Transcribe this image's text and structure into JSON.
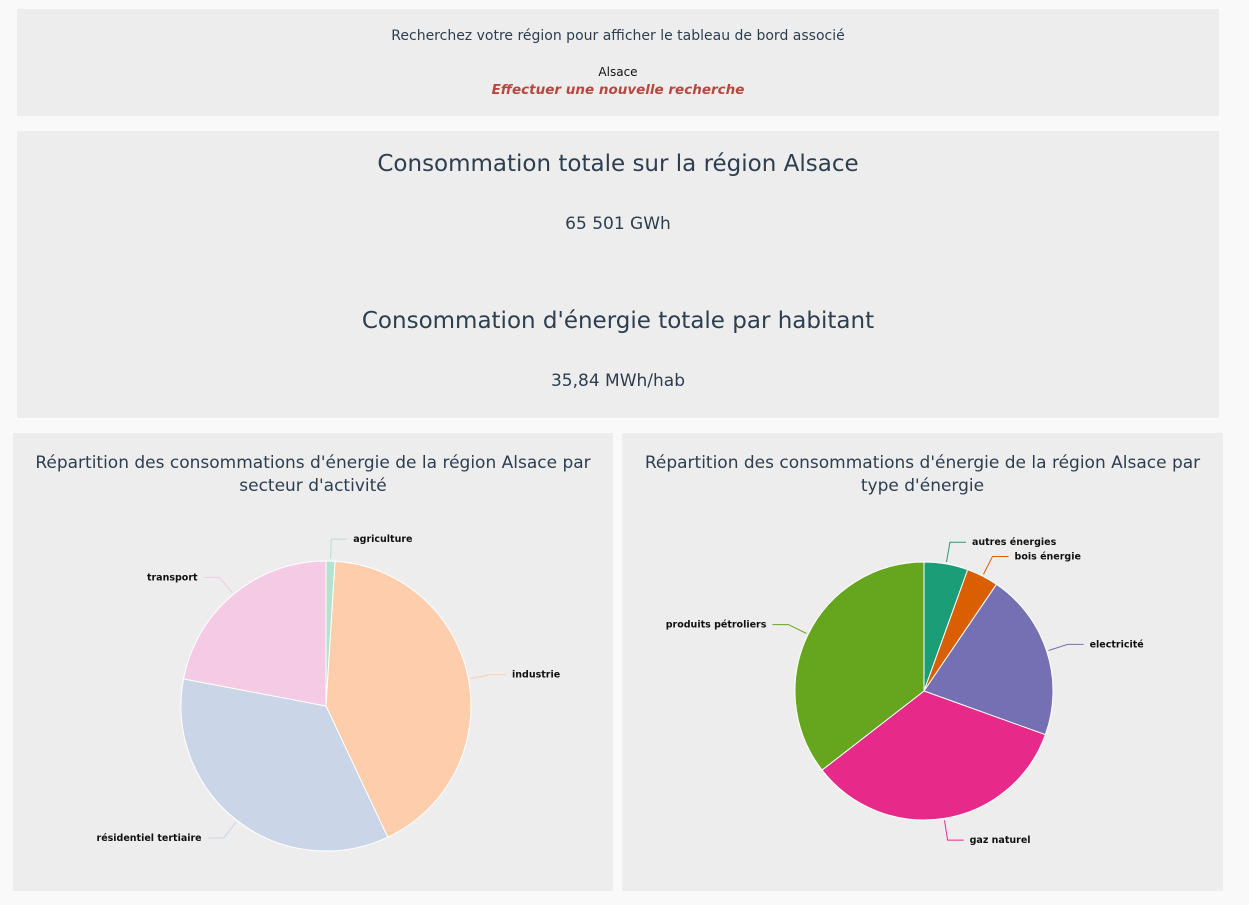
{
  "search": {
    "prompt": "Recherchez votre région pour afficher le tableau de bord associé",
    "region": "Alsace",
    "new_search_label": "Effectuer une nouvelle recherche"
  },
  "totals": {
    "consumption_title": "Consommation totale sur la région Alsace",
    "consumption_value": "65 501 GWh",
    "per_capita_title": "Consommation d'énergie totale par habitant",
    "per_capita_value": "35,84 MWh/hab"
  },
  "chart_data": [
    {
      "type": "pie",
      "title": "Répartition des consommations d'énergie de la région Alsace par secteur d'activité",
      "slices": [
        {
          "label": "agriculture",
          "value": 1,
          "color": "#b3e2cd"
        },
        {
          "label": "industrie",
          "value": 42,
          "color": "#fdcdac"
        },
        {
          "label": "résidentiel tertiaire",
          "value": 35,
          "color": "#cbd5e8"
        },
        {
          "label": "transport",
          "value": 22,
          "color": "#f4cae4"
        }
      ]
    },
    {
      "type": "pie",
      "title": "Répartition des consommations d'énergie de la région Alsace par type d'énergie",
      "slices": [
        {
          "label": "autres énergies",
          "value": 5.5,
          "color": "#1b9e77"
        },
        {
          "label": "bois énergie",
          "value": 4,
          "color": "#d95f02"
        },
        {
          "label": "electricité",
          "value": 21,
          "color": "#7570b3"
        },
        {
          "label": "gaz naturel",
          "value": 34,
          "color": "#e7298a"
        },
        {
          "label": "produits pétroliers",
          "value": 35.5,
          "color": "#66a61e"
        }
      ]
    }
  ]
}
